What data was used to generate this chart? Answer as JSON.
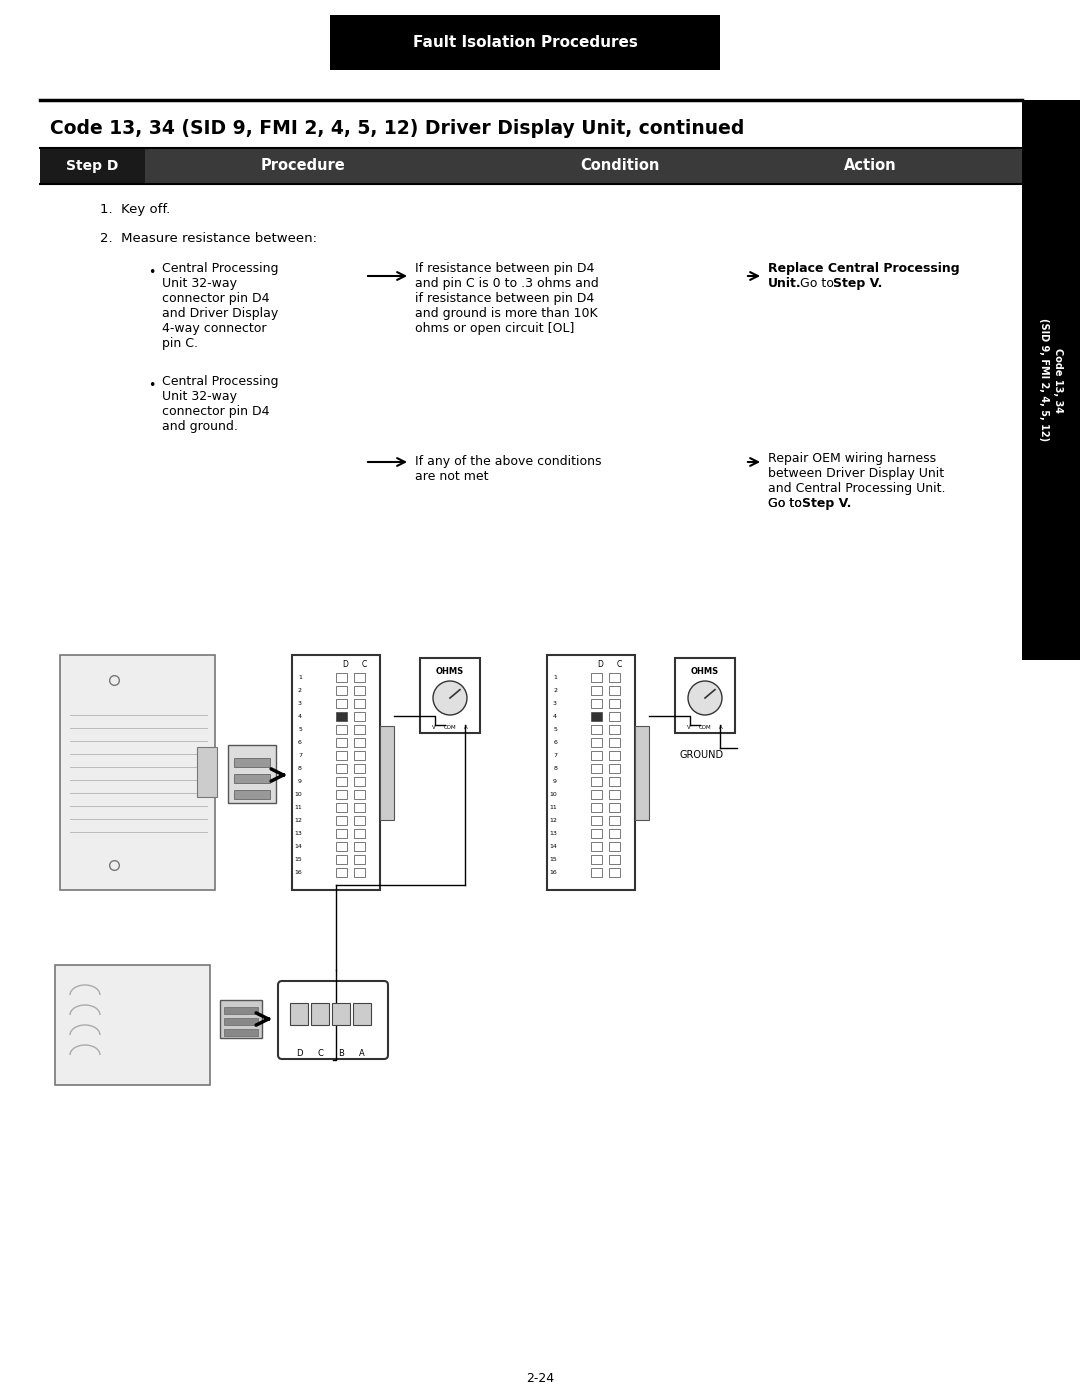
{
  "page_bg": "#ffffff",
  "header_bg": "#000000",
  "header_text": "Fault Isolation Procedures",
  "header_text_color": "#ffffff",
  "title": "Code 13, 34 (SID 9, FMI 2, 4, 5, 12) Driver Display Unit, continued",
  "title_color": "#000000",
  "sidebar_bg": "#000000",
  "sidebar_text_color": "#ffffff",
  "table_header_bg": "#3a3a3a",
  "table_header_text_color": "#ffffff",
  "step_label": "Step D",
  "col_procedure": "Procedure",
  "col_condition": "Condition",
  "col_action": "Action",
  "step1": "1.  Key off.",
  "step2": "2.  Measure resistance between:",
  "bullet1_lines": [
    "Central Processing",
    "Unit 32-way",
    "connector pin D4",
    "and Driver Display",
    "4-way connector",
    "pin C."
  ],
  "bullet2_lines": [
    "Central Processing",
    "Unit 32-way",
    "connector pin D4",
    "and ground."
  ],
  "condition1_lines": [
    "If resistance between pin D4",
    "and pin C is 0 to .3 ohms and",
    "if resistance between pin D4",
    "and ground is more than 10K",
    "ohms or open circuit [OL]"
  ],
  "action1_bold": "Replace Central Processing",
  "action1_bold2": "Unit.",
  "action1_normal": " Go to ",
  "action1_bold3": "Step V.",
  "condition2_lines": [
    "If any of the above conditions",
    "are not met"
  ],
  "action2_lines": [
    "Repair OEM wiring harness",
    "between Driver Display Unit",
    "and Central Processing Unit.",
    "Go to "
  ],
  "action2_bold": "Step V.",
  "page_number": "2-24",
  "fig_w": 10.8,
  "fig_h": 13.97,
  "dpi": 100
}
